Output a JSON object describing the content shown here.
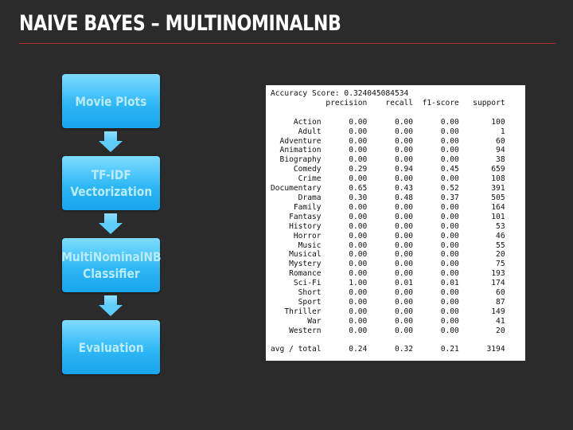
{
  "slide": {
    "title": "NAIVE BAYES – MULTINOMINALNB"
  },
  "flow": {
    "steps": [
      {
        "label": "Movie Plots"
      },
      {
        "label": "TF-IDF\nVectorization"
      },
      {
        "label": "MultiNominalNB\nClassifier"
      },
      {
        "label": "Evaluation"
      }
    ]
  },
  "report": {
    "accuracy_line": "Accuracy Score: 0.324045084534",
    "columns": [
      "precision",
      "recall",
      "f1-score",
      "support"
    ],
    "rows": [
      {
        "label": "Action",
        "precision": "0.00",
        "recall": "0.00",
        "f1": "0.00",
        "support": "100"
      },
      {
        "label": "Adult",
        "precision": "0.00",
        "recall": "0.00",
        "f1": "0.00",
        "support": "1"
      },
      {
        "label": "Adventure",
        "precision": "0.00",
        "recall": "0.00",
        "f1": "0.00",
        "support": "60"
      },
      {
        "label": "Animation",
        "precision": "0.00",
        "recall": "0.00",
        "f1": "0.00",
        "support": "94"
      },
      {
        "label": "Biography",
        "precision": "0.00",
        "recall": "0.00",
        "f1": "0.00",
        "support": "38"
      },
      {
        "label": "Comedy",
        "precision": "0.29",
        "recall": "0.94",
        "f1": "0.45",
        "support": "659"
      },
      {
        "label": "Crime",
        "precision": "0.00",
        "recall": "0.00",
        "f1": "0.00",
        "support": "108"
      },
      {
        "label": "Documentary",
        "precision": "0.65",
        "recall": "0.43",
        "f1": "0.52",
        "support": "391"
      },
      {
        "label": "Drama",
        "precision": "0.30",
        "recall": "0.48",
        "f1": "0.37",
        "support": "505"
      },
      {
        "label": "Family",
        "precision": "0.00",
        "recall": "0.00",
        "f1": "0.00",
        "support": "164"
      },
      {
        "label": "Fantasy",
        "precision": "0.00",
        "recall": "0.00",
        "f1": "0.00",
        "support": "101"
      },
      {
        "label": "History",
        "precision": "0.00",
        "recall": "0.00",
        "f1": "0.00",
        "support": "53"
      },
      {
        "label": "Horror",
        "precision": "0.00",
        "recall": "0.00",
        "f1": "0.00",
        "support": "46"
      },
      {
        "label": "Music",
        "precision": "0.00",
        "recall": "0.00",
        "f1": "0.00",
        "support": "55"
      },
      {
        "label": "Musical",
        "precision": "0.00",
        "recall": "0.00",
        "f1": "0.00",
        "support": "20"
      },
      {
        "label": "Mystery",
        "precision": "0.00",
        "recall": "0.00",
        "f1": "0.00",
        "support": "75"
      },
      {
        "label": "Romance",
        "precision": "0.00",
        "recall": "0.00",
        "f1": "0.00",
        "support": "193"
      },
      {
        "label": "Sci-Fi",
        "precision": "1.00",
        "recall": "0.01",
        "f1": "0.01",
        "support": "174"
      },
      {
        "label": "Short",
        "precision": "0.00",
        "recall": "0.00",
        "f1": "0.00",
        "support": "60"
      },
      {
        "label": "Sport",
        "precision": "0.00",
        "recall": "0.00",
        "f1": "0.00",
        "support": "87"
      },
      {
        "label": "Thriller",
        "precision": "0.00",
        "recall": "0.00",
        "f1": "0.00",
        "support": "149"
      },
      {
        "label": "War",
        "precision": "0.00",
        "recall": "0.00",
        "f1": "0.00",
        "support": "41"
      },
      {
        "label": "Western",
        "precision": "0.00",
        "recall": "0.00",
        "f1": "0.00",
        "support": "20"
      }
    ],
    "total": {
      "label": "avg / total",
      "precision": "0.24",
      "recall": "0.32",
      "f1": "0.21",
      "support": "3194"
    }
  }
}
